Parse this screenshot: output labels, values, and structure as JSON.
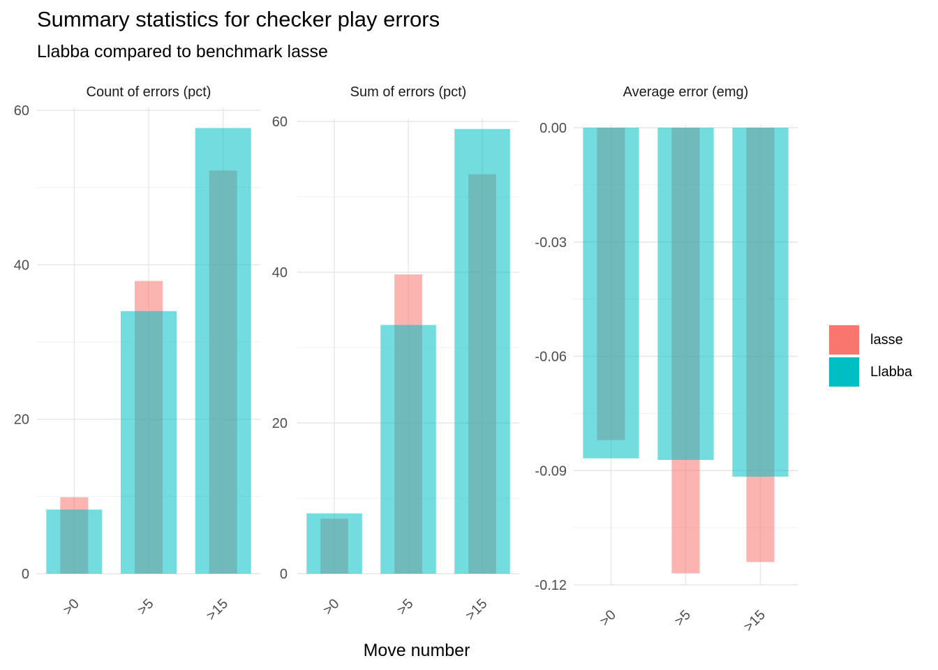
{
  "title": "Summary statistics for checker play errors",
  "subtitle": "Llabba compared to benchmark lasse",
  "xlabel": "Move number",
  "legend": [
    {
      "label": "lasse",
      "color": "#F8766D"
    },
    {
      "label": "Llabba",
      "color": "#00BFC4"
    }
  ],
  "chart_data": [
    {
      "type": "bar",
      "title": "Count of errors (pct)",
      "categories": [
        ">0",
        ">5",
        ">15"
      ],
      "series": [
        {
          "name": "lasse",
          "values": [
            9.9,
            37.9,
            52.2
          ]
        },
        {
          "name": "Llabba",
          "values": [
            8.3,
            34.0,
            57.7
          ]
        }
      ],
      "ylim": [
        0,
        60
      ],
      "yticks": [
        0,
        20,
        40,
        60
      ],
      "ytick_labels": [
        "0",
        "20",
        "40",
        "60"
      ],
      "grid": true
    },
    {
      "type": "bar",
      "title": "Sum of errors (pct)",
      "categories": [
        ">0",
        ">5",
        ">15"
      ],
      "series": [
        {
          "name": "lasse",
          "values": [
            7.3,
            39.7,
            53.0
          ]
        },
        {
          "name": "Llabba",
          "values": [
            8.0,
            33.0,
            59.0
          ]
        }
      ],
      "ylim": [
        0,
        60
      ],
      "yticks": [
        0,
        20,
        40,
        60
      ],
      "ytick_labels": [
        "0",
        "20",
        "40",
        "60"
      ],
      "grid": true
    },
    {
      "type": "bar",
      "title": "Average error (emg)",
      "categories": [
        ">0",
        ">5",
        ">15"
      ],
      "series": [
        {
          "name": "lasse",
          "values": [
            -0.082,
            -0.117,
            -0.114
          ]
        },
        {
          "name": "Llabba",
          "values": [
            -0.0868,
            -0.0872,
            -0.0916
          ]
        }
      ],
      "ylim": [
        -0.12,
        0
      ],
      "yticks": [
        0,
        -0.03,
        -0.06,
        -0.09,
        -0.12
      ],
      "ytick_labels": [
        "0.00",
        "-0.03",
        "-0.06",
        "-0.09",
        "-0.12"
      ],
      "grid": true
    }
  ]
}
